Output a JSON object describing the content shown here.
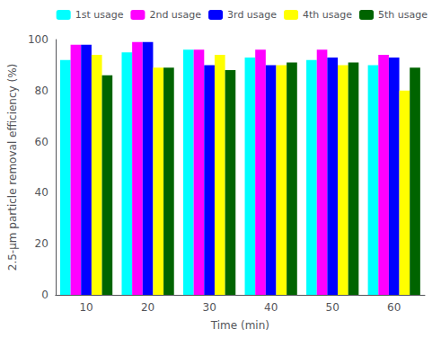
{
  "chart_data": {
    "type": "bar",
    "categories": [
      10,
      20,
      30,
      40,
      50,
      60
    ],
    "series": [
      {
        "name": "1st usage",
        "color": "#00FFFF",
        "values": [
          92,
          95,
          96,
          93,
          92,
          90
        ]
      },
      {
        "name": "2nd usage",
        "color": "#FF00FF",
        "values": [
          98,
          99,
          96,
          96,
          96,
          94
        ]
      },
      {
        "name": "3rd usage",
        "color": "#0000FF",
        "values": [
          98,
          99,
          90,
          90,
          93,
          93
        ]
      },
      {
        "name": "4th usage",
        "color": "#FFFF00",
        "values": [
          94,
          89,
          94,
          90,
          90,
          80
        ]
      },
      {
        "name": "5th usage",
        "color": "#006400",
        "values": [
          86,
          89,
          88,
          91,
          91,
          89
        ]
      }
    ],
    "xlabel": "Time (min)",
    "ylabel": "2.5-μm particle removal efficiency (%)",
    "ylim": [
      0,
      100
    ],
    "yticks": [
      0,
      20,
      40,
      60,
      80,
      100
    ],
    "grid": false,
    "legend": "upper right"
  }
}
